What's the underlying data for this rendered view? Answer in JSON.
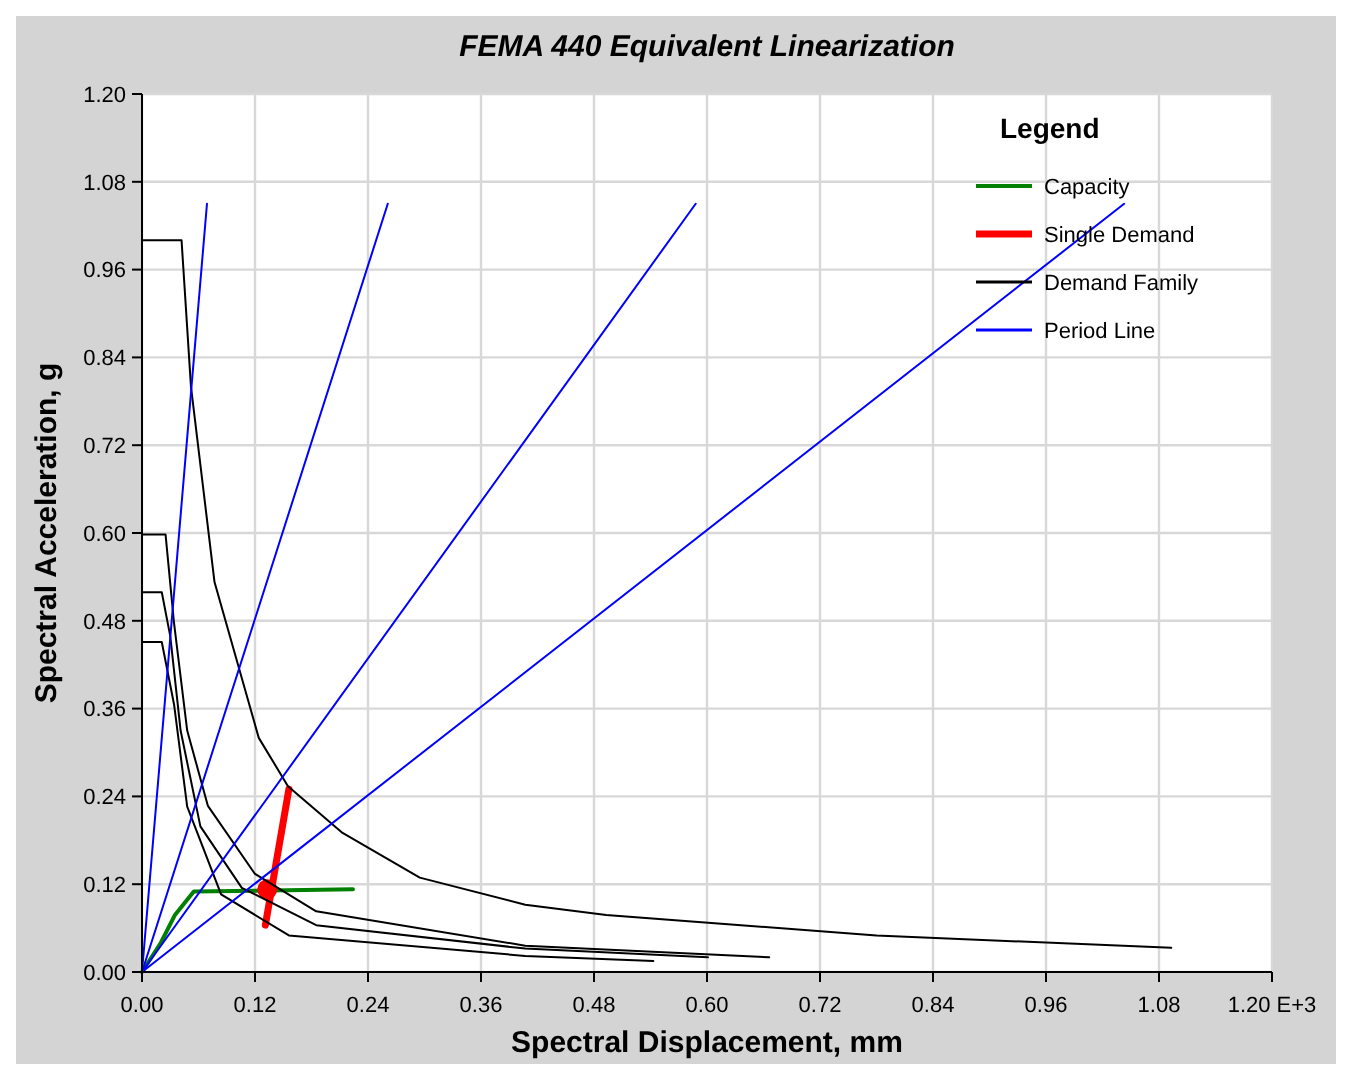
{
  "chart_data": {
    "type": "line",
    "title": "FEMA 440 Equivalent Linearization",
    "xlabel": "Spectral Displacement, mm",
    "ylabel": "Spectral Acceleration, g",
    "legend_title": "Legend",
    "legend": "top right",
    "grid": true,
    "xlim": [
      0,
      1.2
    ],
    "ylim": [
      0,
      1.2
    ],
    "xticks": [
      {
        "value": 0,
        "label": "0.00"
      },
      {
        "value": 0.12,
        "label": "0.12"
      },
      {
        "value": 0.24,
        "label": "0.24"
      },
      {
        "value": 0.36,
        "label": "0.36"
      },
      {
        "value": 0.48,
        "label": "0.48"
      },
      {
        "value": 0.6,
        "label": "0.60"
      },
      {
        "value": 0.72,
        "label": "0.72"
      },
      {
        "value": 0.84,
        "label": "0.84"
      },
      {
        "value": 0.96,
        "label": "0.96"
      },
      {
        "value": 1.08,
        "label": "1.08"
      },
      {
        "value": 1.2,
        "label": "1.20 E+3"
      }
    ],
    "yticks": [
      {
        "value": 0,
        "label": "0.00"
      },
      {
        "value": 0.12,
        "label": "0.12"
      },
      {
        "value": 0.24,
        "label": "0.24"
      },
      {
        "value": 0.36,
        "label": "0.36"
      },
      {
        "value": 0.48,
        "label": "0.48"
      },
      {
        "value": 0.6,
        "label": "0.60"
      },
      {
        "value": 0.72,
        "label": "0.72"
      },
      {
        "value": 0.84,
        "label": "0.84"
      },
      {
        "value": 0.96,
        "label": "0.96"
      },
      {
        "value": 1.08,
        "label": "1.08"
      },
      {
        "value": 1.2,
        "label": "1.20"
      }
    ],
    "series": [
      {
        "name": "Capacity",
        "color": "#008000",
        "x": [
          0,
          0.02,
          0.035,
          0.055,
          0.224
        ],
        "values": [
          0,
          0.04,
          0.078,
          0.11,
          0.113
        ]
      },
      {
        "name": "Single Demand",
        "color": "#ff0000",
        "x": [
          0.156,
          0.131
        ],
        "values": [
          0.25,
          0.064
        ]
      },
      {
        "type": "scatter",
        "color": "#ff0000",
        "x": [
          0.133
        ],
        "values": [
          0.113
        ]
      },
      {
        "name": "Demand Family",
        "color": "#000000",
        "x": [
          0,
          0,
          0.042,
          0.052,
          0.077,
          0.124,
          0.155,
          0.213,
          0.295,
          0.407,
          0.493,
          0.78,
          1.093
        ],
        "values": [
          0.254,
          1.0,
          1.0,
          0.8,
          0.533,
          0.32,
          0.254,
          0.19,
          0.129,
          0.092,
          0.078,
          0.05,
          0.033
        ]
      },
      {
        "color": "#000000",
        "x": [
          0,
          0.025,
          0.034,
          0.048,
          0.07,
          0.12,
          0.185,
          0.407,
          0.666
        ],
        "values": [
          0.598,
          0.598,
          0.477,
          0.33,
          0.227,
          0.134,
          0.083,
          0.036,
          0.02
        ]
      },
      {
        "color": "#000000",
        "x": [
          0,
          0.021,
          0.03,
          0.041,
          0.062,
          0.106,
          0.185,
          0.407,
          0.601
        ],
        "values": [
          0.519,
          0.519,
          0.459,
          0.33,
          0.199,
          0.115,
          0.064,
          0.032,
          0.02
        ]
      },
      {
        "color": "#000000",
        "x": [
          0,
          0.021,
          0.034,
          0.048,
          0.084,
          0.156,
          0.407,
          0.543
        ],
        "values": [
          0.451,
          0.451,
          0.366,
          0.226,
          0.106,
          0.05,
          0.022,
          0.015
        ]
      },
      {
        "name": "Period Line",
        "color": "#0000ff",
        "x": [
          0,
          0.069
        ],
        "values": [
          0,
          1.05
        ]
      },
      {
        "color": "#0000ff",
        "x": [
          0,
          0.261
        ],
        "values": [
          0,
          1.05
        ]
      },
      {
        "color": "#0000ff",
        "x": [
          0,
          0.588
        ],
        "values": [
          0,
          1.05
        ]
      },
      {
        "color": "#0000ff",
        "x": [
          0,
          1.043
        ],
        "values": [
          0,
          1.05
        ]
      }
    ]
  }
}
